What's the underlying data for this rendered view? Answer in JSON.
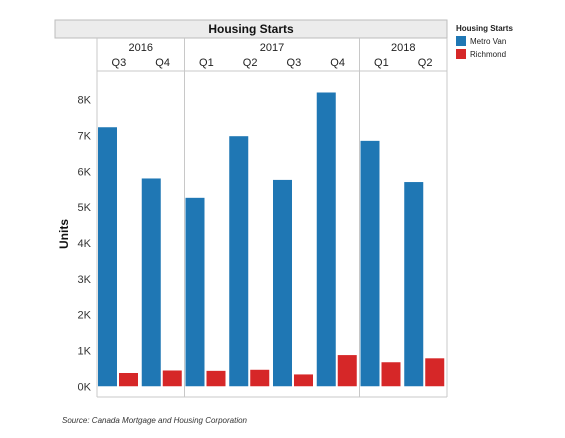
{
  "chart_data": {
    "type": "bar",
    "title": "Housing Starts",
    "ylabel": "Units",
    "xlabel": "",
    "ylim": [
      -300,
      8800
    ],
    "yticks": [
      0,
      1000,
      2000,
      3000,
      4000,
      5000,
      6000,
      7000,
      8000
    ],
    "ytick_labels": [
      "0K",
      "1K",
      "2K",
      "3K",
      "4K",
      "5K",
      "6K",
      "7K",
      "8K"
    ],
    "years": [
      {
        "label": "2016",
        "quarters": [
          "Q3",
          "Q4"
        ]
      },
      {
        "label": "2017",
        "quarters": [
          "Q1",
          "Q2",
          "Q3",
          "Q4"
        ]
      },
      {
        "label": "2018",
        "quarters": [
          "Q1",
          "Q2"
        ]
      }
    ],
    "categories": [
      "2016 Q3",
      "2016 Q4",
      "2017 Q1",
      "2017 Q2",
      "2017 Q3",
      "2017 Q4",
      "2018 Q1",
      "2018 Q2"
    ],
    "series": [
      {
        "name": "Metro Van",
        "color": "#1f77b4",
        "values": [
          7230,
          5800,
          5260,
          6980,
          5760,
          8200,
          6850,
          5700
        ]
      },
      {
        "name": "Richmond",
        "color": "#d62728",
        "values": [
          370,
          440,
          430,
          460,
          330,
          870,
          670,
          780
        ]
      }
    ],
    "legend": {
      "title": "Housing Starts",
      "position": "top-right"
    },
    "grid": false
  },
  "source": "Source: Canada Mortgage and Housing Corporation"
}
